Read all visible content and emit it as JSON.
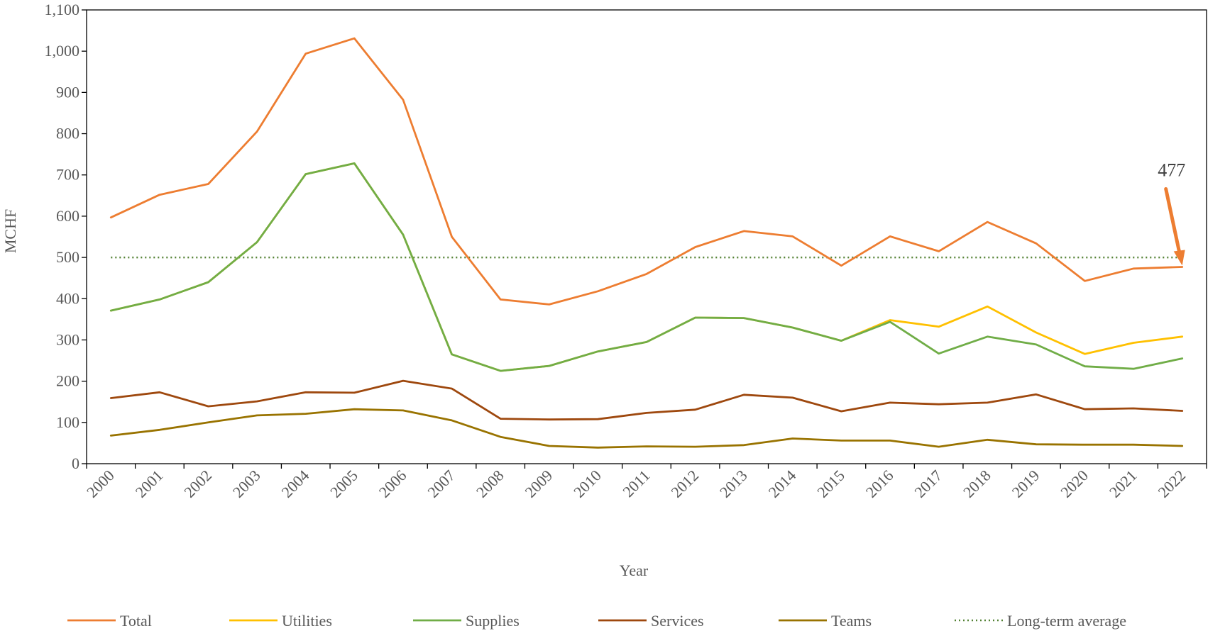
{
  "chart_data": {
    "type": "line",
    "title": "",
    "xlabel": "Year",
    "ylabel": "MCHF",
    "ylim": [
      0,
      1100
    ],
    "yticks": [
      0,
      100,
      200,
      300,
      400,
      500,
      600,
      700,
      800,
      900,
      1000,
      1100
    ],
    "ytick_labels": [
      "0",
      "100",
      "200",
      "300",
      "400",
      "500",
      "600",
      "700",
      "800",
      "900",
      "1,000",
      "1,100"
    ],
    "x": [
      "2000",
      "2001",
      "2002",
      "2003",
      "2004",
      "2005",
      "2006",
      "2007",
      "2008",
      "2009",
      "2010",
      "2011",
      "2012",
      "2013",
      "2014",
      "2015",
      "2016",
      "2017",
      "2018",
      "2019",
      "2020",
      "2021",
      "2022"
    ],
    "grid": false,
    "legend_position": "bottom",
    "series": [
      {
        "name": "Total",
        "color": "#ED7D31",
        "style": "solid",
        "values": [
          597,
          652,
          678,
          805,
          994,
          1031,
          882,
          550,
          398,
          386,
          418,
          460,
          525,
          564,
          551,
          480,
          551,
          515,
          586,
          534,
          443,
          473,
          477
        ]
      },
      {
        "name": "Utilities",
        "color": "#FFC000",
        "style": "solid",
        "values": [
          371,
          398,
          440,
          537,
          702,
          728,
          555,
          265,
          225,
          237,
          272,
          295,
          354,
          353,
          330,
          298,
          348,
          332,
          381,
          318,
          266,
          293,
          308
        ]
      },
      {
        "name": "Supplies",
        "color": "#70AD47",
        "style": "solid",
        "values": [
          371,
          398,
          440,
          537,
          702,
          728,
          555,
          265,
          225,
          237,
          272,
          295,
          354,
          353,
          330,
          298,
          344,
          267,
          308,
          289,
          236,
          230,
          255
        ]
      },
      {
        "name": "Services",
        "color": "#9E480E",
        "style": "solid",
        "values": [
          159,
          173,
          139,
          151,
          173,
          172,
          201,
          182,
          109,
          107,
          108,
          123,
          131,
          167,
          160,
          127,
          148,
          144,
          148,
          168,
          132,
          134,
          128
        ]
      },
      {
        "name": "Teams",
        "color": "#997300",
        "style": "solid",
        "values": [
          68,
          82,
          100,
          117,
          121,
          132,
          129,
          105,
          65,
          43,
          39,
          42,
          41,
          45,
          61,
          56,
          56,
          41,
          58,
          47,
          46,
          46,
          43
        ]
      },
      {
        "name": "Long-term average",
        "color": "#548235",
        "style": "dotted",
        "values": [
          500,
          500,
          500,
          500,
          500,
          500,
          500,
          500,
          500,
          500,
          500,
          500,
          500,
          500,
          500,
          500,
          500,
          500,
          500,
          500,
          500,
          500,
          500
        ]
      }
    ],
    "annotations": [
      {
        "text": "477",
        "x": "2022",
        "y": 477,
        "arrow": true,
        "color": "#ED7D31"
      }
    ]
  }
}
